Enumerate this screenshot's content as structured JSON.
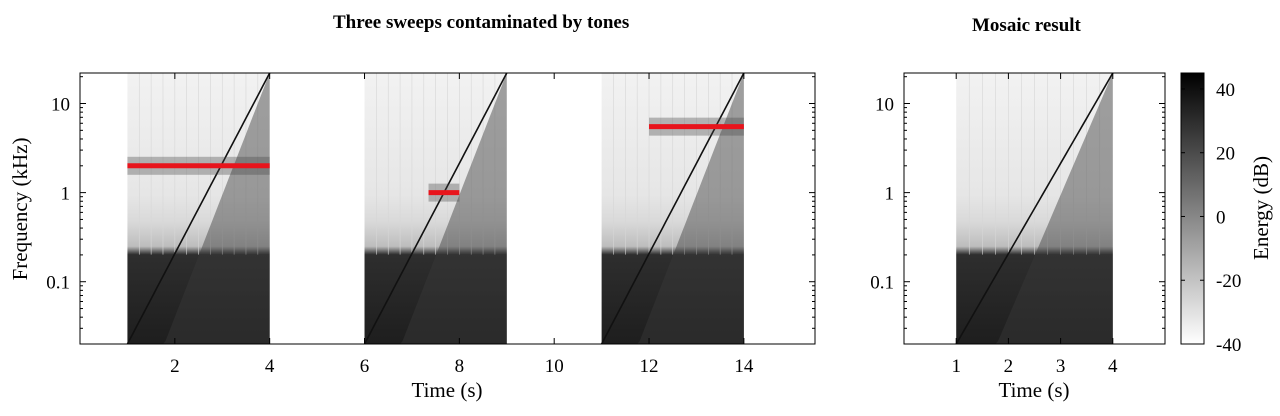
{
  "colors": {
    "background": "#ffffff",
    "ink": "#000000",
    "tone_marker": "#e8141c"
  },
  "chart_data": [
    {
      "type": "heatmap",
      "title": "Three sweeps contaminated by tones",
      "xlabel": "Time (s)",
      "ylabel": "Frequency (kHz)",
      "xlim": [
        0,
        15.5
      ],
      "ylim": [
        0.02,
        22
      ],
      "y_scale": "log",
      "x_ticks": [
        2,
        4,
        6,
        8,
        10,
        12,
        14
      ],
      "x_tick_labels": [
        "2",
        "4",
        "6",
        "8",
        "10",
        "12",
        "14"
      ],
      "y_ticks": [
        0.1,
        1,
        10
      ],
      "y_tick_labels": [
        "0.1",
        "1",
        "10"
      ],
      "grid": false,
      "colormap": "gray-reversed",
      "sweeps": [
        {
          "t_start": 1.0,
          "t_end": 4.0,
          "f_start_khz": 0.02,
          "f_end_khz": 22
        },
        {
          "t_start": 6.0,
          "t_end": 9.0,
          "f_start_khz": 0.02,
          "f_end_khz": 22
        },
        {
          "t_start": 11.0,
          "t_end": 14.0,
          "f_start_khz": 0.02,
          "f_end_khz": 22
        }
      ],
      "tones": [
        {
          "t_start": 1.0,
          "t_end": 4.0,
          "freq_khz": 2.0
        },
        {
          "t_start": 7.35,
          "t_end": 8.0,
          "freq_khz": 1.0
        },
        {
          "t_start": 12.0,
          "t_end": 14.0,
          "freq_khz": 5.5
        }
      ]
    },
    {
      "type": "heatmap",
      "title": "Mosaic result",
      "xlabel": "Time (s)",
      "ylabel": "",
      "xlim": [
        0,
        5
      ],
      "ylim": [
        0.02,
        22
      ],
      "y_scale": "log",
      "x_ticks": [
        1,
        2,
        3,
        4
      ],
      "x_tick_labels": [
        "1",
        "2",
        "3",
        "4"
      ],
      "y_ticks": [
        0.1,
        1,
        10
      ],
      "y_tick_labels": [
        "0.1",
        "1",
        "10"
      ],
      "grid": false,
      "colormap": "gray-reversed",
      "sweeps": [
        {
          "t_start": 1.0,
          "t_end": 4.0,
          "f_start_khz": 0.02,
          "f_end_khz": 22
        }
      ],
      "colorbar": {
        "label": "Energy (dB)",
        "range": [
          -40,
          45
        ],
        "ticks": [
          40,
          20,
          0,
          -20,
          -40
        ],
        "tick_labels": [
          "40",
          "20",
          "0",
          "-20",
          "-40"
        ]
      }
    }
  ]
}
